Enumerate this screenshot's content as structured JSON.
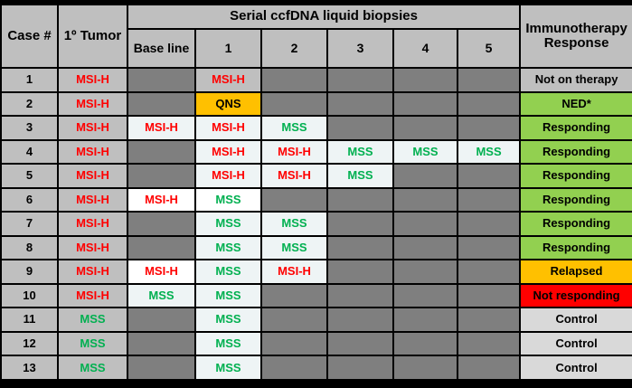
{
  "table": {
    "headers": {
      "case": "Case #",
      "tumor": "1º Tumor",
      "serial_group": "Serial ccfDNA liquid biopsies",
      "biopsy_columns": [
        "Base line",
        "1",
        "2",
        "3",
        "4",
        "5"
      ],
      "response": "Immunotherapy Response"
    },
    "rows": [
      {
        "case": "1",
        "tumor": {
          "text": "MSI-H",
          "color": "red"
        },
        "biopsies": [
          {
            "text": "",
            "bg": "dark"
          },
          {
            "text": "MSI-H",
            "bg": "gray",
            "color": "red"
          },
          {
            "text": "",
            "bg": "dark"
          },
          {
            "text": "",
            "bg": "dark"
          },
          {
            "text": "",
            "bg": "dark"
          },
          {
            "text": "",
            "bg": "dark"
          }
        ],
        "response": {
          "text": "Not on therapy",
          "bg": "gray"
        }
      },
      {
        "case": "2",
        "tumor": {
          "text": "MSI-H",
          "color": "red"
        },
        "biopsies": [
          {
            "text": "",
            "bg": "dark"
          },
          {
            "text": "QNS",
            "bg": "amber",
            "color": "black"
          },
          {
            "text": "",
            "bg": "dark"
          },
          {
            "text": "",
            "bg": "dark"
          },
          {
            "text": "",
            "bg": "dark"
          },
          {
            "text": "",
            "bg": "dark"
          }
        ],
        "response": {
          "text": "NED*",
          "bg": "green"
        }
      },
      {
        "case": "3",
        "tumor": {
          "text": "MSI-H",
          "color": "red"
        },
        "biopsies": [
          {
            "text": "MSI-H",
            "bg": "azure",
            "color": "red"
          },
          {
            "text": "MSI-H",
            "bg": "azure",
            "color": "red"
          },
          {
            "text": "MSS",
            "bg": "azure",
            "color": "green"
          },
          {
            "text": "",
            "bg": "dark"
          },
          {
            "text": "",
            "bg": "dark"
          },
          {
            "text": "",
            "bg": "dark"
          }
        ],
        "response": {
          "text": "Responding",
          "bg": "green"
        }
      },
      {
        "case": "4",
        "tumor": {
          "text": "MSI-H",
          "color": "red"
        },
        "biopsies": [
          {
            "text": "",
            "bg": "dark"
          },
          {
            "text": "MSI-H",
            "bg": "azure",
            "color": "red"
          },
          {
            "text": "MSI-H",
            "bg": "azure",
            "color": "red"
          },
          {
            "text": "MSS",
            "bg": "azure",
            "color": "green"
          },
          {
            "text": "MSS",
            "bg": "azure",
            "color": "green"
          },
          {
            "text": "MSS",
            "bg": "azure",
            "color": "green"
          }
        ],
        "response": {
          "text": "Responding",
          "bg": "green"
        }
      },
      {
        "case": "5",
        "tumor": {
          "text": "MSI-H",
          "color": "red"
        },
        "biopsies": [
          {
            "text": "",
            "bg": "dark"
          },
          {
            "text": "MSI-H",
            "bg": "azure",
            "color": "red"
          },
          {
            "text": "MSI-H",
            "bg": "azure",
            "color": "red"
          },
          {
            "text": "MSS",
            "bg": "azure",
            "color": "green"
          },
          {
            "text": "",
            "bg": "dark"
          },
          {
            "text": "",
            "bg": "dark"
          }
        ],
        "response": {
          "text": "Responding",
          "bg": "green"
        }
      },
      {
        "case": "6",
        "tumor": {
          "text": "MSI-H",
          "color": "red"
        },
        "biopsies": [
          {
            "text": "MSI-H",
            "bg": "white",
            "color": "red"
          },
          {
            "text": "MSS",
            "bg": "white",
            "color": "green"
          },
          {
            "text": "",
            "bg": "dark"
          },
          {
            "text": "",
            "bg": "dark"
          },
          {
            "text": "",
            "bg": "dark"
          },
          {
            "text": "",
            "bg": "dark"
          }
        ],
        "response": {
          "text": "Responding",
          "bg": "green"
        }
      },
      {
        "case": "7",
        "tumor": {
          "text": "MSI-H",
          "color": "red"
        },
        "biopsies": [
          {
            "text": "",
            "bg": "dark"
          },
          {
            "text": "MSS",
            "bg": "azure",
            "color": "green"
          },
          {
            "text": "MSS",
            "bg": "azure",
            "color": "green"
          },
          {
            "text": "",
            "bg": "dark"
          },
          {
            "text": "",
            "bg": "dark"
          },
          {
            "text": "",
            "bg": "dark"
          }
        ],
        "response": {
          "text": "Responding",
          "bg": "green"
        }
      },
      {
        "case": "8",
        "tumor": {
          "text": "MSI-H",
          "color": "red"
        },
        "biopsies": [
          {
            "text": "",
            "bg": "dark"
          },
          {
            "text": "MSS",
            "bg": "azure",
            "color": "green"
          },
          {
            "text": "MSS",
            "bg": "azure",
            "color": "green"
          },
          {
            "text": "",
            "bg": "dark"
          },
          {
            "text": "",
            "bg": "dark"
          },
          {
            "text": "",
            "bg": "dark"
          }
        ],
        "response": {
          "text": "Responding",
          "bg": "green"
        }
      },
      {
        "case": "9",
        "tumor": {
          "text": "MSI-H",
          "color": "red"
        },
        "biopsies": [
          {
            "text": "MSI-H",
            "bg": "white",
            "color": "red"
          },
          {
            "text": "MSS",
            "bg": "azure",
            "color": "green"
          },
          {
            "text": "MSI-H",
            "bg": "azure",
            "color": "red"
          },
          {
            "text": "",
            "bg": "dark"
          },
          {
            "text": "",
            "bg": "dark"
          },
          {
            "text": "",
            "bg": "dark"
          }
        ],
        "response": {
          "text": "Relapsed",
          "bg": "amber"
        }
      },
      {
        "case": "10",
        "tumor": {
          "text": "MSI-H",
          "color": "red"
        },
        "biopsies": [
          {
            "text": "MSS",
            "bg": "azure",
            "color": "green"
          },
          {
            "text": "MSS",
            "bg": "azure",
            "color": "green"
          },
          {
            "text": "",
            "bg": "dark"
          },
          {
            "text": "",
            "bg": "dark"
          },
          {
            "text": "",
            "bg": "dark"
          },
          {
            "text": "",
            "bg": "dark"
          }
        ],
        "response": {
          "text": "Not responding",
          "bg": "red"
        }
      },
      {
        "case": "11",
        "tumor": {
          "text": "MSS",
          "color": "green"
        },
        "biopsies": [
          {
            "text": "",
            "bg": "dark"
          },
          {
            "text": "MSS",
            "bg": "azure",
            "color": "green"
          },
          {
            "text": "",
            "bg": "dark"
          },
          {
            "text": "",
            "bg": "dark"
          },
          {
            "text": "",
            "bg": "dark"
          },
          {
            "text": "",
            "bg": "dark"
          }
        ],
        "response": {
          "text": "Control",
          "bg": "control"
        }
      },
      {
        "case": "12",
        "tumor": {
          "text": "MSS",
          "color": "green"
        },
        "biopsies": [
          {
            "text": "",
            "bg": "dark"
          },
          {
            "text": "MSS",
            "bg": "azure",
            "color": "green"
          },
          {
            "text": "",
            "bg": "dark"
          },
          {
            "text": "",
            "bg": "dark"
          },
          {
            "text": "",
            "bg": "dark"
          },
          {
            "text": "",
            "bg": "dark"
          }
        ],
        "response": {
          "text": "Control",
          "bg": "control"
        }
      },
      {
        "case": "13",
        "tumor": {
          "text": "MSS",
          "color": "green"
        },
        "biopsies": [
          {
            "text": "",
            "bg": "dark"
          },
          {
            "text": "MSS",
            "bg": "azure",
            "color": "green"
          },
          {
            "text": "",
            "bg": "dark"
          },
          {
            "text": "",
            "bg": "dark"
          },
          {
            "text": "",
            "bg": "dark"
          },
          {
            "text": "",
            "bg": "dark"
          }
        ],
        "response": {
          "text": "Control",
          "bg": "control"
        }
      }
    ]
  },
  "colors": {
    "header_bg": "#bfbfbf",
    "empty_cell_bg": "#7f7f7f",
    "filled_cell_bg": "#eef4f5",
    "white_cell_bg": "#ffffff",
    "qns_bg": "#ffc000",
    "green_bg": "#92d050",
    "red_bg": "#ff0000",
    "control_bg": "#d9d9d9",
    "msih_text": "#ff0000",
    "mss_text": "#00b050"
  }
}
